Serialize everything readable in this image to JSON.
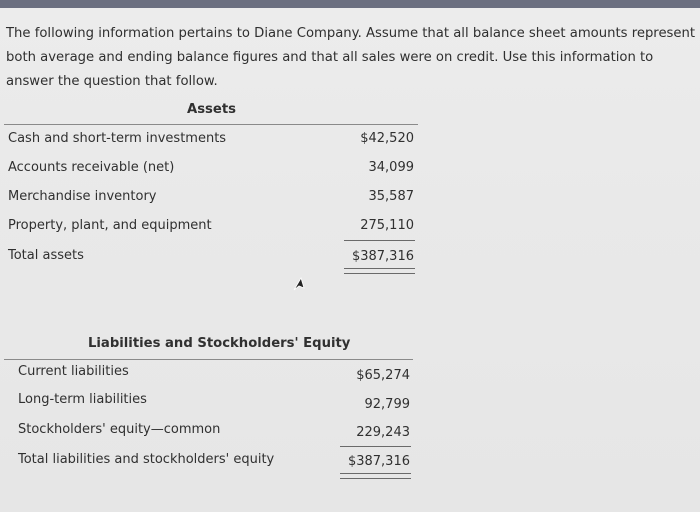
{
  "intro": "The following information pertains to Diane Company. Assume that all balance sheet amounts represent both average and ending balance figures and that all sales were on credit. Use this information to answer the question that follow.",
  "assets": {
    "title": "Assets",
    "rows": [
      {
        "label": "Cash and short-term investments",
        "value": "$42,520"
      },
      {
        "label": "Accounts receivable (net)",
        "value": "34,099"
      },
      {
        "label": "Merchandise inventory",
        "value": "35,587"
      },
      {
        "label": "Property, plant, and equipment",
        "value": "275,110"
      },
      {
        "label": "Total assets",
        "value": "$387,316"
      }
    ]
  },
  "liabilities": {
    "title": "Liabilities and Stockholders' Equity",
    "rows": [
      {
        "label": "Current liabilities",
        "value": "$65,274"
      },
      {
        "label": "Long-term liabilities",
        "value": "92,799"
      },
      {
        "label": "Stockholders' equity—common",
        "value": "229,243"
      },
      {
        "label": "Total liabilities and stockholders' equity",
        "value": "$387,316"
      }
    ]
  }
}
